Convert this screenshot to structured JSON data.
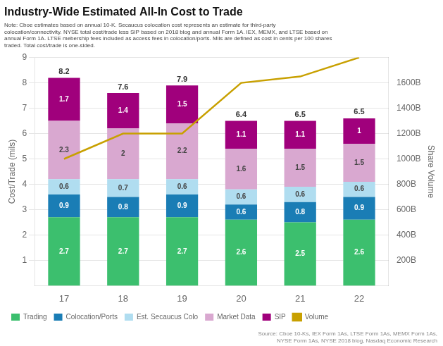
{
  "chart_data": {
    "type": "bar",
    "title": "Industry-Wide Estimated All-In Cost to Trade",
    "notes": [
      "Note: Cboe estimates based on annual 10-K. Secaucus colocation cost represents an estimate for third-party",
      "colocation/connectivity. NYSE total cost/trade less SIP based on 2018 blog and annual Form 1A. IEX, MEMX, and LTSE based on",
      "annual Form 1A. LTSE mebership fees included as access fees in colocation/ports. Mils are defined as cost in cents per 100 shares",
      "traded. Total cost/trade is one-sided."
    ],
    "source": [
      "NYSE Form 1As, NYSE 2018 blog, Nasdaq Economic Research",
      "Source: Cboe 10-Ks, IEX Form 1As, LTSE Form 1As, MEMX Form 1As,"
    ],
    "categories": [
      "17",
      "18",
      "19",
      "20",
      "21",
      "22"
    ],
    "stacked": true,
    "series": [
      {
        "name": "Trading",
        "color": "#3cbf6e",
        "values": [
          2.7,
          2.7,
          2.7,
          2.6,
          2.5,
          2.6
        ],
        "data_labels": true
      },
      {
        "name": "Colocation/Ports",
        "color": "#1a7db5",
        "values": [
          0.9,
          0.8,
          0.9,
          0.6,
          0.8,
          0.9
        ],
        "data_labels": true
      },
      {
        "name": "Est. Secaucus Colo",
        "color": "#b0ddf0",
        "values": [
          0.6,
          0.7,
          0.6,
          0.6,
          0.6,
          0.6
        ],
        "data_labels": true
      },
      {
        "name": "Market Data",
        "color": "#d9a8d0",
        "values": [
          2.3,
          2.0,
          2.2,
          1.6,
          1.5,
          1.5
        ],
        "data_labels": true
      },
      {
        "name": "SIP",
        "color": "#a0007c",
        "values": [
          1.7,
          1.4,
          1.5,
          1.1,
          1.1,
          1.0
        ],
        "data_labels": true
      },
      {
        "name": "Volume",
        "type": "line",
        "axis": "y2",
        "color": "#c8a000",
        "values": [
          1000,
          1200,
          1200,
          1600,
          1650,
          1800
        ]
      }
    ],
    "totals": [
      8.2,
      7.6,
      7.9,
      6.4,
      6.5,
      6.5
    ],
    "ylabel": "Cost/Trade (mils)",
    "y2label": "Share Volume",
    "ylim": [
      0,
      9
    ],
    "yticks": [
      1,
      2,
      3,
      4,
      5,
      6,
      7,
      8,
      9
    ],
    "y2lim": [
      0,
      1800
    ],
    "y2ticks": [
      {
        "value": 200,
        "label": "200B"
      },
      {
        "value": 400,
        "label": "400B"
      },
      {
        "value": 600,
        "label": "600B"
      },
      {
        "value": 800,
        "label": "800B"
      },
      {
        "value": 1000,
        "label": "1000B"
      },
      {
        "value": 1200,
        "label": "1200B"
      },
      {
        "value": 1400,
        "label": "1400B"
      },
      {
        "value": 1600,
        "label": "1600B"
      }
    ],
    "grid": true,
    "legend": "bottom"
  }
}
